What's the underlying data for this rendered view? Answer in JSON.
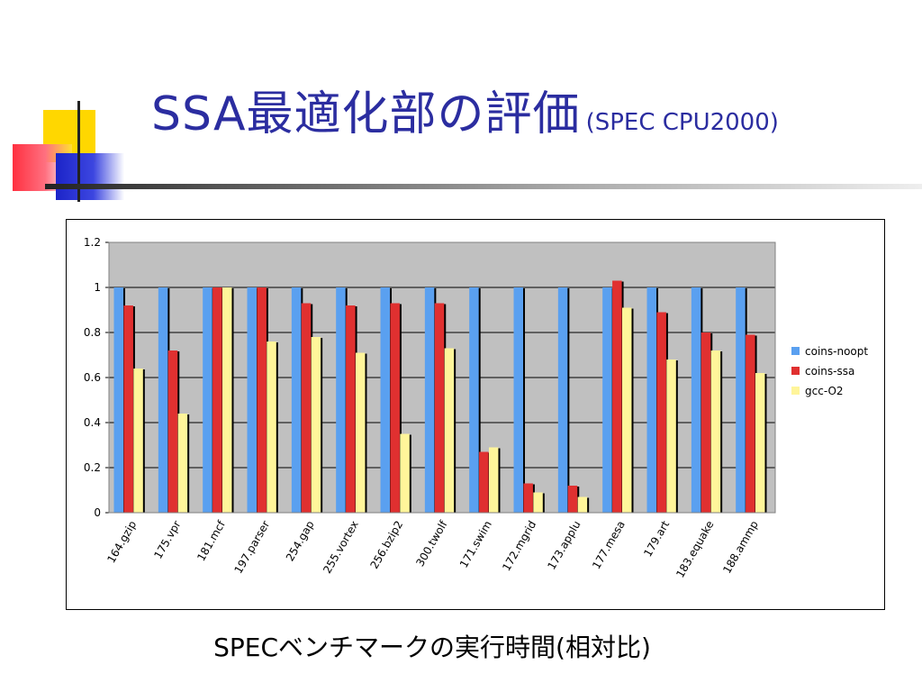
{
  "slide": {
    "title": "SSA最適化部の評価",
    "subtitle": "(SPEC CPU2000)",
    "caption": "SPECベンチマークの実行時間(相対比)"
  },
  "chart_data": {
    "type": "bar",
    "title": "",
    "xlabel": "",
    "ylabel": "",
    "ylim": [
      0,
      1.2
    ],
    "yticks": [
      "0",
      "0.2",
      "0.4",
      "0.6",
      "0.8",
      "1",
      "1.2"
    ],
    "grid": true,
    "legend_position": "right",
    "categories": [
      "164.gzip",
      "175.vpr",
      "181.mcf",
      "197.parser",
      "254.gap",
      "255.vortex",
      "256.bzip2",
      "300.twolf",
      "171.swim",
      "172.mgrid",
      "173.applu",
      "177.mesa",
      "179.art",
      "183.equake",
      "188.ammp"
    ],
    "series": [
      {
        "name": "coins-noopt",
        "color": "#5aa0f0",
        "values": [
          1,
          1,
          1,
          1,
          1,
          1,
          1,
          1,
          1,
          1,
          1,
          1,
          1,
          1,
          1
        ]
      },
      {
        "name": "coins-ssa",
        "color": "#e03030",
        "values": [
          0.92,
          0.72,
          1.0,
          1.0,
          0.93,
          0.92,
          0.93,
          0.93,
          0.27,
          0.13,
          0.12,
          1.03,
          0.89,
          0.8,
          0.79
        ]
      },
      {
        "name": "gcc-O2",
        "color": "#fff59a",
        "values": [
          0.64,
          0.44,
          1.0,
          0.76,
          0.78,
          0.71,
          0.35,
          0.73,
          0.29,
          0.09,
          0.07,
          0.91,
          0.68,
          0.72,
          0.62
        ]
      }
    ]
  }
}
